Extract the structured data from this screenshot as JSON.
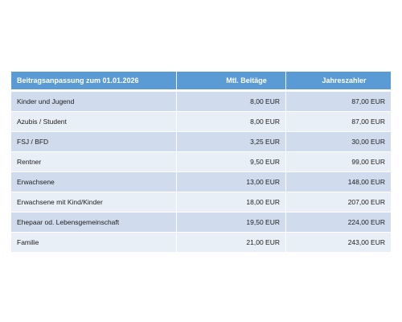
{
  "table": {
    "headers": [
      "Beitragsanpassung zum 01.01.2026",
      "Mtl. Beitäge",
      "Jahreszahler"
    ],
    "rows": [
      [
        "Kinder und Jugend",
        "8,00 EUR",
        "87,00 EUR"
      ],
      [
        "Azubis / Student",
        "8,00 EUR",
        "87,00 EUR"
      ],
      [
        "FSJ / BFD",
        "3,25 EUR",
        "30,00 EUR"
      ],
      [
        "Rentner",
        "9,50 EUR",
        "99,00 EUR"
      ],
      [
        "Erwachsene",
        "13,00 EUR",
        "148,00 EUR"
      ],
      [
        "Erwachsene mit Kind/Kinder",
        "18,00 EUR",
        "207,00 EUR"
      ],
      [
        "Ehepaar od. Lebensgemeinschaft",
        "19,50 EUR",
        "224,00 EUR"
      ],
      [
        "Familie",
        "21,00 EUR",
        "243,00 EUR"
      ]
    ]
  },
  "colors": {
    "header_bg": "#5b9bd5",
    "row_dark": "#d0dcee",
    "row_light": "#e9eff7"
  }
}
